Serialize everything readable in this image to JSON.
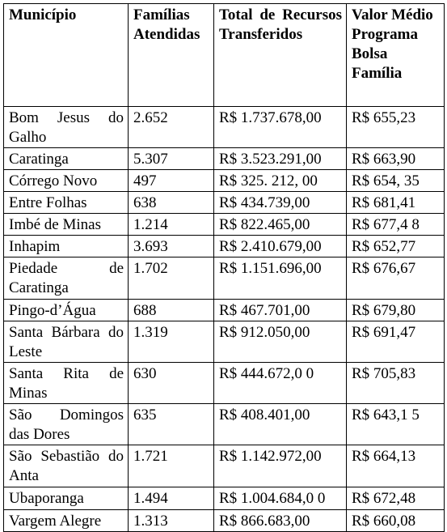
{
  "table": {
    "header": [
      "Município",
      "Famílias Atendidas",
      "Total de Recursos Transferidos",
      "Valor Médio Programa Bolsa Família"
    ],
    "rows": [
      [
        "Bom Jesus do Galho",
        "2.652",
        "R$ 1.737.678,00",
        "R$ 655,23"
      ],
      [
        "Caratinga",
        "5.307",
        "R$ 3.523.291,00",
        "R$ 663,90"
      ],
      [
        "Córrego Novo",
        "497",
        "R$ 325. 212, 00",
        "R$ 654, 35"
      ],
      [
        "Entre Folhas",
        "638",
        "R$ 434.739,00",
        "R$ 681,41"
      ],
      [
        "Imbé de Minas",
        "1.214",
        "R$ 822.465,00",
        "R$ 677,4 8"
      ],
      [
        "Inhapim",
        "3.693",
        "R$ 2.410.679,00",
        "R$ 652,77"
      ],
      [
        "Piedade de Caratinga",
        "1.702",
        "R$ 1.151.696,00",
        "R$ 676,67"
      ],
      [
        "Pingo-d’Água",
        "688",
        "R$ 467.701,00",
        "R$ 679,80"
      ],
      [
        "Santa Bárbara do Leste",
        "1.319",
        "R$ 912.050,00",
        "R$ 691,47"
      ],
      [
        "Santa Rita de Minas",
        "630",
        "R$ 444.672,0 0",
        "R$ 705,83"
      ],
      [
        "São Domingos das Dores",
        "635",
        "R$ 408.401,00",
        "R$ 643,1 5"
      ],
      [
        "São Sebastião do Anta",
        "1.721",
        "R$ 1.142.972,00",
        "R$ 664,13"
      ],
      [
        "Ubaporanga",
        "1.494",
        "R$ 1.004.684,0 0",
        "R$ 672,48"
      ],
      [
        "Vargem Alegre",
        "1.313",
        "R$ 866.683,00",
        "R$ 660,08"
      ]
    ]
  }
}
